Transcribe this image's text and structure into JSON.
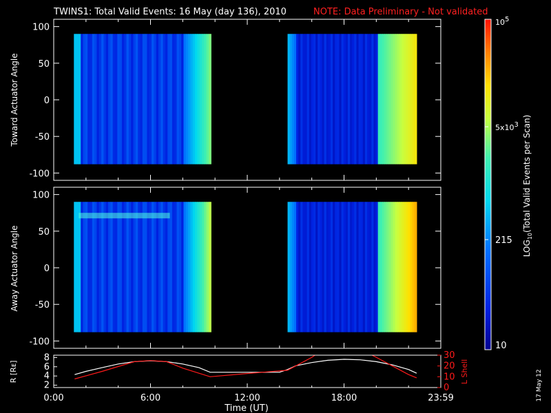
{
  "header": {
    "title": "TWINS1: Total Valid Events: 16 May (day 136), 2010",
    "note": "NOTE: Data Preliminary - Not validated"
  },
  "footer": {
    "date_stamp": "17 May 12"
  },
  "colors": {
    "note": "#ff2020",
    "orbit_r": "#ffffff",
    "orbit_l": "#ff1a1a",
    "background": "#000000"
  },
  "chart_data": [
    {
      "type": "heatmap",
      "panel": "top",
      "ylabel": "Toward Actuator Angle",
      "ylim": [
        -110,
        110
      ],
      "yticks": [
        "100",
        "50",
        "0",
        "-50",
        "-100"
      ],
      "data_y_range": [
        -88,
        90
      ],
      "time_blocks": [
        {
          "start_h": 1.25,
          "end_h": 9.75,
          "level_start": 0.18,
          "level_end": 0.5
        },
        {
          "start_h": 14.5,
          "end_h": 22.5,
          "level_start": 0.12,
          "level_end": 0.78
        }
      ]
    },
    {
      "type": "heatmap",
      "panel": "bottom",
      "ylabel": "Away Actuator Angle",
      "ylim": [
        -110,
        110
      ],
      "yticks": [
        "100",
        "50",
        "0",
        "-50",
        "-100"
      ],
      "data_y_range": [
        -88,
        90
      ],
      "time_blocks": [
        {
          "start_h": 1.25,
          "end_h": 9.75,
          "level_start": 0.18,
          "level_end": 0.55
        },
        {
          "start_h": 14.5,
          "end_h": 22.5,
          "level_start": 0.12,
          "level_end": 0.85
        }
      ]
    },
    {
      "type": "line",
      "panel": "orbit",
      "xlabel": "Time (UT)",
      "xticks": [
        "0:00",
        "6:00",
        "12:00",
        "18:00",
        "23:59"
      ],
      "xtick_hours": [
        0,
        6,
        12,
        18,
        24
      ],
      "xlim": [
        0,
        24
      ],
      "ylabel_left": "R [Rᴇ]",
      "ylim_left": [
        1.5,
        8.5
      ],
      "yticks_left": [
        "8",
        "6",
        "4",
        "2"
      ],
      "ylabel_right": "L Shell",
      "ylim_right": [
        0,
        30
      ],
      "yticks_right": [
        "30",
        "20",
        "10",
        "0"
      ],
      "series": [
        {
          "axis": "left",
          "x": [
            1.3,
            2,
            3,
            4,
            5,
            6,
            7,
            8,
            9,
            9.7,
            11,
            12,
            13,
            14,
            14.5,
            15,
            16,
            17,
            18,
            19,
            20,
            21,
            22,
            22.5
          ],
          "values": [
            4.3,
            5.0,
            5.8,
            6.6,
            7.1,
            7.3,
            7.1,
            6.6,
            5.8,
            4.8,
            4.8,
            4.8,
            4.8,
            4.8,
            5.4,
            6.2,
            6.9,
            7.4,
            7.6,
            7.5,
            7.1,
            6.4,
            5.4,
            4.6
          ]
        },
        {
          "axis": "right",
          "x": [
            1.3,
            3,
            5,
            6,
            7,
            8,
            9.7,
            12,
            14.5,
            15,
            16,
            16.3,
            19.6,
            20,
            21,
            22,
            22.5
          ],
          "values": [
            8,
            15,
            24,
            25,
            24,
            18,
            10,
            13,
            16,
            20,
            28,
            31,
            31,
            28,
            20,
            12,
            9
          ]
        }
      ]
    }
  ],
  "colorbar": {
    "scale": "log",
    "range": [
      10,
      100000
    ],
    "label": "LOG",
    "label_sub": "10",
    "label_rest": "(Total Valid Events per Scan)",
    "ticks": [
      {
        "value": 100000,
        "base": "10",
        "exp": "5"
      },
      {
        "value": 5000,
        "base": "5x10",
        "exp": "3"
      },
      {
        "value": 215,
        "text": "215"
      },
      {
        "value": 10,
        "text": "10"
      }
    ]
  }
}
